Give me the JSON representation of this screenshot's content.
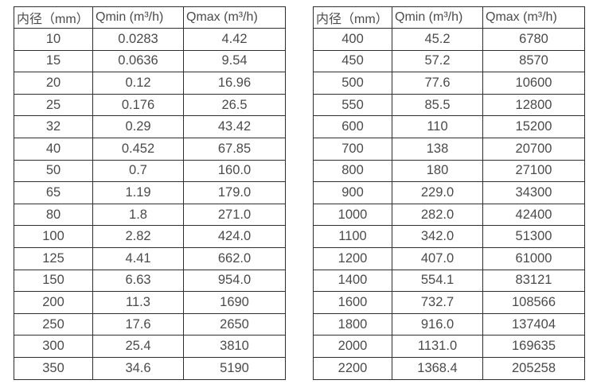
{
  "page": {
    "background": "#ffffff",
    "text_color": "#4b4b4b",
    "border_color": "#2f2f2f"
  },
  "tables": [
    {
      "name": "flow-table-small-diameters",
      "headers": [
        "内径（mm）",
        "Qmin (m³/h)",
        "Qmax (m³/h)"
      ],
      "rows": [
        [
          "10",
          "0.0283",
          "4.42"
        ],
        [
          "15",
          "0.0636",
          "9.54"
        ],
        [
          "20",
          "0.12",
          "16.96"
        ],
        [
          "25",
          "0.176",
          "26.5"
        ],
        [
          "32",
          "0.29",
          "43.42"
        ],
        [
          "40",
          "0.452",
          "67.85"
        ],
        [
          "50",
          "0.7",
          "160.0"
        ],
        [
          "65",
          "1.19",
          "179.0"
        ],
        [
          "80",
          "1.8",
          "271.0"
        ],
        [
          "100",
          "2.82",
          "424.0"
        ],
        [
          "125",
          "4.41",
          "662.0"
        ],
        [
          "150",
          "6.63",
          "954.0"
        ],
        [
          "200",
          "11.3",
          "1690"
        ],
        [
          "250",
          "17.6",
          "2650"
        ],
        [
          "300",
          "25.4",
          "3810"
        ],
        [
          "350",
          "34.6",
          "5190"
        ]
      ]
    },
    {
      "name": "flow-table-large-diameters",
      "headers": [
        "内径（mm）",
        "Qmin (m³/h)",
        "Qmax (m³/h)"
      ],
      "rows": [
        [
          "400",
          "45.2",
          "6780"
        ],
        [
          "450",
          "57.2",
          "8570"
        ],
        [
          "500",
          "77.6",
          "10600"
        ],
        [
          "550",
          "85.5",
          "12800"
        ],
        [
          "600",
          "110",
          "15200"
        ],
        [
          "700",
          "138",
          "20700"
        ],
        [
          "800",
          "180",
          "27100"
        ],
        [
          "900",
          "229.0",
          "34300"
        ],
        [
          "1000",
          "282.0",
          "42400"
        ],
        [
          "1100",
          "342.0",
          "51300"
        ],
        [
          "1200",
          "407.0",
          "61000"
        ],
        [
          "1400",
          "554.1",
          "83121"
        ],
        [
          "1600",
          "732.7",
          "108566"
        ],
        [
          "1800",
          "916.0",
          "137404"
        ],
        [
          "2000",
          "1131.0",
          "169635"
        ],
        [
          "2200",
          "1368.4",
          "205258"
        ]
      ]
    }
  ]
}
